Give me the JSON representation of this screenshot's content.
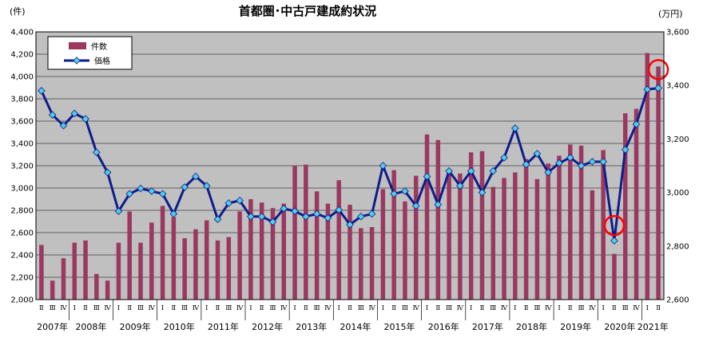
{
  "chart_data": {
    "type": "bar",
    "title": "首都圏･中古戸建成約状況",
    "left_axis_unit": "(件)",
    "right_axis_unit": "(万円)",
    "left_axis": {
      "min": 2000,
      "max": 4400,
      "ticks": [
        "2,000",
        "2,200",
        "2,400",
        "2,600",
        "2,800",
        "3,000",
        "3,200",
        "3,400",
        "3,600",
        "3,800",
        "4,000",
        "4,200",
        "4,400"
      ]
    },
    "right_axis": {
      "min": 2600,
      "max": 3600,
      "ticks": [
        "2,600",
        "2,800",
        "3,000",
        "3,200",
        "3,400",
        "3,600"
      ]
    },
    "quarter_labels": [
      "Ⅱ",
      "Ⅲ",
      "Ⅳ",
      "Ⅰ",
      "Ⅱ",
      "Ⅲ",
      "Ⅳ",
      "Ⅰ",
      "Ⅱ",
      "Ⅲ",
      "Ⅳ",
      "Ⅰ",
      "Ⅱ",
      "Ⅲ",
      "Ⅳ",
      "Ⅰ",
      "Ⅱ",
      "Ⅲ",
      "Ⅳ",
      "Ⅰ",
      "Ⅱ",
      "Ⅲ",
      "Ⅳ",
      "Ⅰ",
      "Ⅱ",
      "Ⅲ",
      "Ⅳ",
      "Ⅰ",
      "Ⅱ",
      "Ⅲ",
      "Ⅳ",
      "Ⅰ",
      "Ⅱ",
      "Ⅲ",
      "Ⅳ",
      "Ⅰ",
      "Ⅱ",
      "Ⅲ",
      "Ⅳ",
      "Ⅰ",
      "Ⅱ",
      "Ⅲ",
      "Ⅳ",
      "Ⅰ",
      "Ⅱ",
      "Ⅲ",
      "Ⅳ",
      "Ⅰ",
      "Ⅱ",
      "Ⅲ",
      "Ⅳ",
      "Ⅰ",
      "Ⅱ",
      "Ⅲ",
      "Ⅳ",
      "Ⅰ",
      "Ⅱ"
    ],
    "year_labels": [
      {
        "label": "2007年",
        "start": 0,
        "count": 3
      },
      {
        "label": "2008年",
        "start": 3,
        "count": 4
      },
      {
        "label": "2009年",
        "start": 7,
        "count": 4
      },
      {
        "label": "2010年",
        "start": 11,
        "count": 4
      },
      {
        "label": "2011年",
        "start": 15,
        "count": 4
      },
      {
        "label": "2012年",
        "start": 19,
        "count": 4
      },
      {
        "label": "2013年",
        "start": 23,
        "count": 4
      },
      {
        "label": "2014年",
        "start": 27,
        "count": 4
      },
      {
        "label": "2015年",
        "start": 31,
        "count": 4
      },
      {
        "label": "2016年",
        "start": 35,
        "count": 4
      },
      {
        "label": "2017年",
        "start": 39,
        "count": 4
      },
      {
        "label": "2018年",
        "start": 43,
        "count": 4
      },
      {
        "label": "2019年",
        "start": 47,
        "count": 4
      },
      {
        "label": "2020年",
        "start": 51,
        "count": 4
      },
      {
        "label": "2021年",
        "start": 55,
        "count": 2
      }
    ],
    "series": [
      {
        "name": "件数",
        "type": "bar",
        "axis": "left",
        "values": [
          2490,
          2170,
          2370,
          2510,
          2530,
          2230,
          2170,
          2510,
          2790,
          2510,
          2690,
          2840,
          2740,
          2550,
          2630,
          2710,
          2530,
          2560,
          2790,
          2900,
          2870,
          2820,
          2860,
          3200,
          3210,
          2970,
          2860,
          3070,
          2850,
          2640,
          2650,
          2990,
          3160,
          2880,
          3110,
          3480,
          3430,
          3150,
          3130,
          3320,
          3330,
          3010,
          3090,
          3140,
          3260,
          3080,
          3220,
          3290,
          3390,
          3380,
          2980,
          3340,
          2410,
          3670,
          3710,
          4210,
          4090
        ]
      },
      {
        "name": "価格",
        "type": "line",
        "axis": "right",
        "values": [
          3380,
          3290,
          3250,
          3295,
          3275,
          3150,
          3075,
          2930,
          2995,
          3015,
          3005,
          2995,
          2920,
          3020,
          3060,
          3025,
          2900,
          2960,
          2970,
          2910,
          2910,
          2890,
          2940,
          2930,
          2910,
          2920,
          2905,
          2935,
          2880,
          2910,
          2920,
          3100,
          2995,
          3005,
          2950,
          3060,
          2955,
          3080,
          3025,
          3080,
          3000,
          3080,
          3130,
          3240,
          3105,
          3145,
          3075,
          3110,
          3130,
          3100,
          3115,
          3115,
          2820,
          3160,
          3255,
          3385,
          3390
        ]
      }
    ],
    "colors": {
      "bar": "#9c3860",
      "line": "#0d1d8c",
      "marker": "#55cce6",
      "plot_bg": "#c0c0c0",
      "highlight": "#ff0000"
    },
    "highlight_circles": [
      {
        "series": "件数",
        "index": 56
      },
      {
        "series": "価格",
        "index": 52
      }
    ],
    "legend": {
      "placement": "top-left",
      "entries": [
        "件数",
        "価格"
      ]
    },
    "grid": true
  }
}
